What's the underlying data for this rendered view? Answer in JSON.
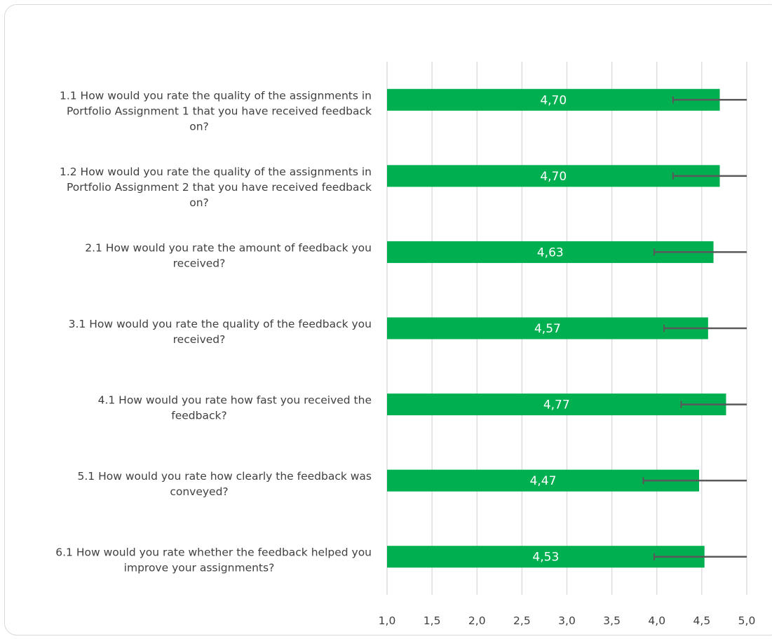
{
  "chart_data": {
    "type": "bar",
    "orientation": "horizontal",
    "categories": [
      "1.1 How would you rate the quality of the assignments in Portfolio Assignment 1 that you have received feedback on?",
      "1.2 How would you rate the quality of the assignments in Portfolio Assignment 2 that you have received feedback on?",
      "2.1 How would you rate the amount of feedback you received?",
      "3.1 How would you rate the quality of the feedback you received?",
      "4.1 How would you rate how fast you received the feedback?",
      "5.1 How would you rate how clearly the feedback was conveyed?",
      "6.1 How would you rate whether the feedback helped you improve your assignments?"
    ],
    "category_lines": [
      [
        "1.1 How would you rate the quality of the assignments in",
        "Portfolio Assignment 1 that you have received feedback",
        "on?"
      ],
      [
        "1.2 How would you rate the quality of the assignments in",
        "Portfolio Assignment 2 that you have received feedback",
        "on?"
      ],
      [
        "2.1 How would you rate the amount of feedback you",
        "received?"
      ],
      [
        "3.1 How would you rate the quality of the feedback you",
        "received?"
      ],
      [
        "4.1 How would you rate how fast you received the",
        "feedback?"
      ],
      [
        "5.1 How would you rate how clearly the feedback was",
        "conveyed?"
      ],
      [
        "6.1 How would you rate whether the feedback helped you",
        "improve your assignments?"
      ]
    ],
    "values": [
      4.7,
      4.7,
      4.63,
      4.57,
      4.77,
      4.47,
      4.53
    ],
    "data_labels": [
      "4,70",
      "4,70",
      "4,63",
      "4,57",
      "4,77",
      "4,47",
      "4,53"
    ],
    "error_bars": [
      {
        "low": 4.18,
        "high": 5.0
      },
      {
        "low": 4.18,
        "high": 5.0
      },
      {
        "low": 3.97,
        "high": 5.0
      },
      {
        "low": 4.08,
        "high": 5.0
      },
      {
        "low": 4.27,
        "high": 5.0
      },
      {
        "low": 3.85,
        "high": 5.0
      },
      {
        "low": 3.97,
        "high": 5.0
      }
    ],
    "xlim": [
      1.0,
      5.0
    ],
    "xticks": [
      1.0,
      1.5,
      2.0,
      2.5,
      3.0,
      3.5,
      4.0,
      4.5,
      5.0
    ],
    "xtick_labels": [
      "1,0",
      "1,5",
      "2,0",
      "2,5",
      "3,0",
      "3,5",
      "4,0",
      "4,5",
      "5,0"
    ],
    "grid": true,
    "bar_color": "#00b050",
    "error_bar_color": "#595959",
    "gridline_color": "#d9d9d9"
  }
}
